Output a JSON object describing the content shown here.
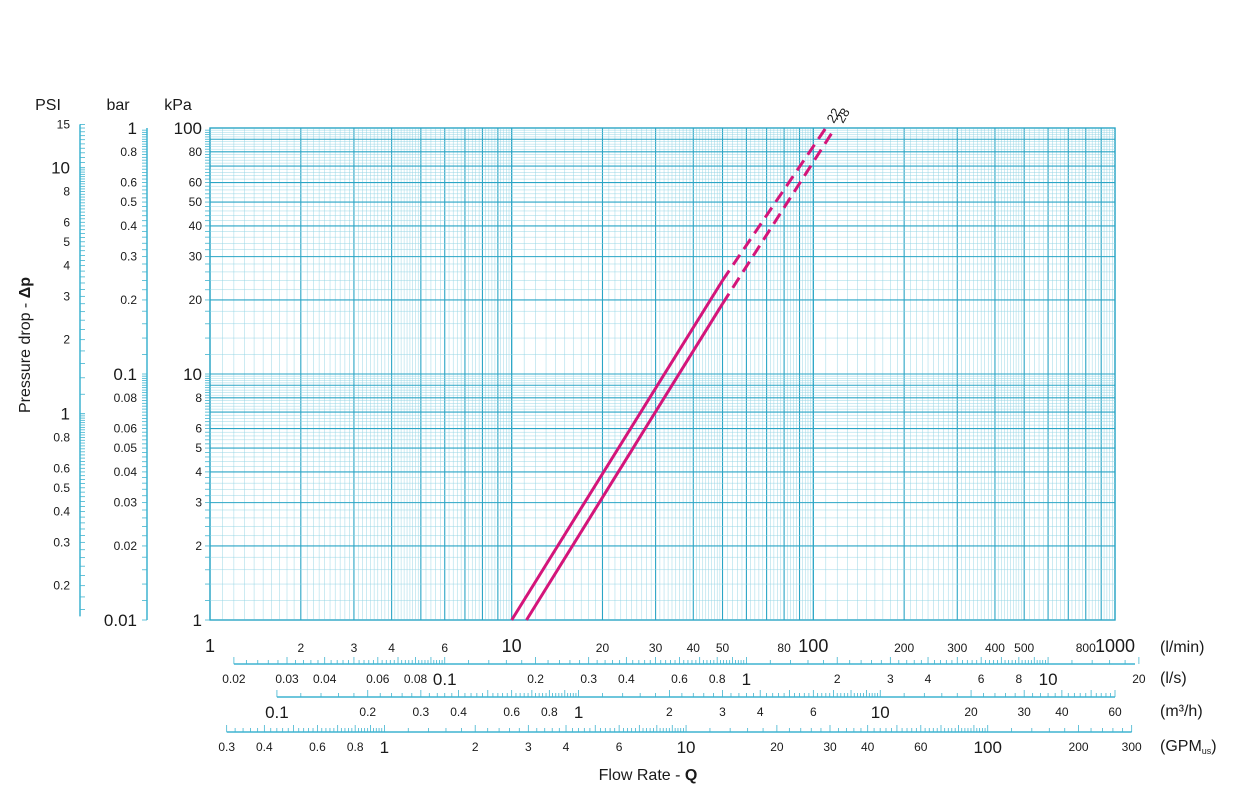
{
  "chart_data": {
    "type": "line",
    "title": "",
    "xlabel_prefix": "Flow Rate - ",
    "xlabel_symbol": "Q",
    "ylabel_prefix": "Pressure drop - ",
    "ylabel_symbol": "Δp",
    "x_scale": "log",
    "y_scale": "log",
    "xlim": [
      1,
      1000
    ],
    "ylim": [
      1,
      100
    ],
    "grid": true,
    "colors": {
      "grid_major": "#2aa5c5",
      "grid_minor": "#8fd3e3",
      "series": "#d4157a",
      "axis_text": "#1a1a1a"
    },
    "y_axes": [
      {
        "unit": "PSI",
        "labels": [
          "15",
          "10",
          "8",
          "6",
          "5",
          "4",
          "3",
          "2",
          "1",
          "0.8",
          "0.6",
          "0.5",
          "0.4",
          "0.3",
          "0.2"
        ]
      },
      {
        "unit": "bar",
        "labels": [
          "1",
          "0.8",
          "0.6",
          "0.5",
          "0.4",
          "0.3",
          "0.2",
          "0.1",
          "0.08",
          "0.06",
          "0.05",
          "0.04",
          "0.03",
          "0.02",
          "0.01"
        ]
      },
      {
        "unit": "kPa",
        "labels": [
          "100",
          "80",
          "60",
          "50",
          "40",
          "30",
          "20",
          "10",
          "8",
          "6",
          "5",
          "4",
          "3",
          "2",
          "1"
        ]
      }
    ],
    "x_axes": [
      {
        "unit": "(l/min)",
        "labels": [
          "1",
          "2",
          "3",
          "4",
          "6",
          "10",
          "20",
          "30",
          "40",
          "50",
          "80",
          "100",
          "200",
          "300",
          "400",
          "500",
          "800",
          "1000"
        ]
      },
      {
        "unit": "(l/s)",
        "labels": [
          "0.02",
          "0.03",
          "0.04",
          "0.06",
          "0.08",
          "0.1",
          "0.2",
          "0.3",
          "0.4",
          "0.6",
          "0.8",
          "1",
          "2",
          "3",
          "4",
          "6",
          "8",
          "10",
          "20"
        ]
      },
      {
        "unit": "(m³/h)",
        "labels": [
          "0.1",
          "0.2",
          "0.3",
          "0.4",
          "0.6",
          "0.8",
          "1",
          "2",
          "3",
          "4",
          "6",
          "10",
          "20",
          "30",
          "40",
          "60"
        ]
      },
      {
        "unit_main": "(GPM",
        "unit_sub": "us",
        "unit_end": ")",
        "labels": [
          "0.3",
          "0.4",
          "0.6",
          "0.8",
          "1",
          "2",
          "3",
          "4",
          "6",
          "10",
          "20",
          "30",
          "40",
          "60",
          "100",
          "200",
          "300"
        ]
      }
    ],
    "series": [
      {
        "name": "22",
        "solid": {
          "x": [
            10,
            50
          ],
          "y": [
            1,
            24
          ]
        },
        "dashed": {
          "x": [
            50,
            110
          ],
          "y": [
            24,
            100
          ]
        }
      },
      {
        "name": "28",
        "solid": {
          "x": [
            11.2,
            50
          ],
          "y": [
            1,
            19.3
          ]
        },
        "dashed": {
          "x": [
            50,
            118
          ],
          "y": [
            19.3,
            100
          ]
        }
      }
    ]
  }
}
